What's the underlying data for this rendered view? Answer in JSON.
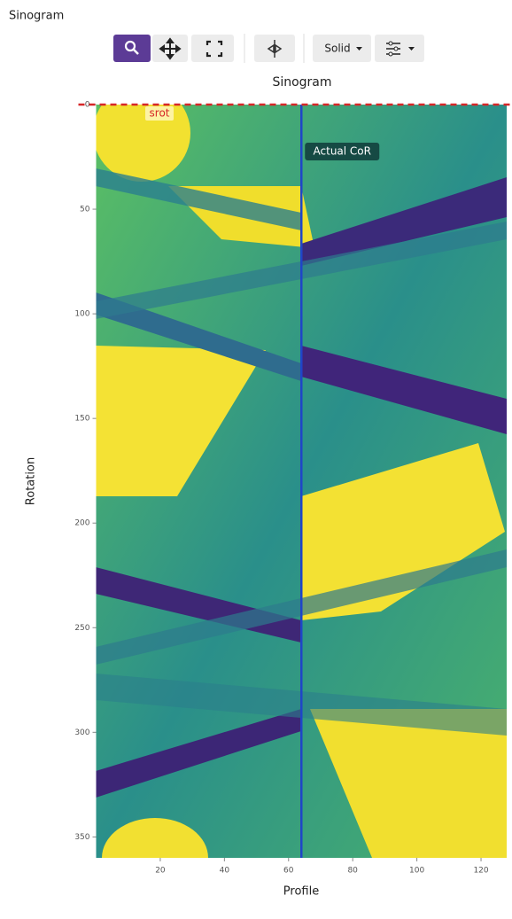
{
  "panel_title": "Sinogram",
  "toolbar": {
    "dropdown": "Solid"
  },
  "chart_data": {
    "type": "image",
    "title": "Sinogram",
    "x_label": "Profile",
    "y_label": "Rotation",
    "xlim": [
      0,
      128
    ],
    "ylim": [
      0,
      360
    ],
    "y_inverted": true,
    "xticks": [
      20,
      40,
      60,
      80,
      100,
      120
    ],
    "yticks": [
      0,
      50,
      100,
      150,
      200,
      250,
      300,
      350
    ],
    "annotations": [
      {
        "axis": "x",
        "value": 64,
        "label": "Actual CoR",
        "color": "#1f45c8",
        "style": "solid"
      },
      {
        "axis": "y",
        "value": 0,
        "label": "srot",
        "color": "#d62728",
        "style": "dashed"
      }
    ]
  }
}
